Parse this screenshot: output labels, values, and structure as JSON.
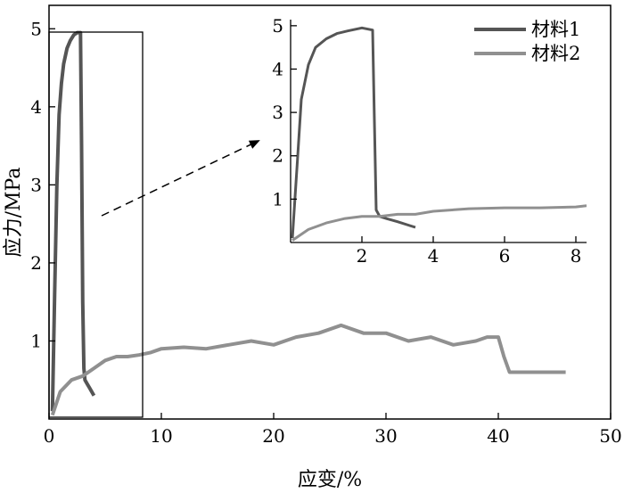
{
  "chart_data": [
    {
      "type": "line",
      "xlabel": "应变/%",
      "ylabel": "应力/MPa",
      "xlim": [
        0,
        50
      ],
      "ylim": [
        0,
        5.3
      ],
      "xticks": [
        "0",
        "10",
        "20",
        "30",
        "40",
        "50"
      ],
      "yticks": [
        "1",
        "2",
        "3",
        "4",
        "5"
      ],
      "legend": {
        "position": "top-right",
        "entries": [
          "材料1",
          "材料2"
        ]
      },
      "series": [
        {
          "name": "材料1",
          "color": "#555555",
          "x": [
            0.3,
            0.5,
            0.7,
            0.9,
            1.1,
            1.3,
            1.6,
            1.9,
            2.2,
            2.5,
            2.8,
            2.9,
            3.0,
            3.1,
            3.2,
            3.4,
            3.6,
            3.8,
            4.0
          ],
          "y": [
            0.1,
            1.6,
            3.0,
            3.9,
            4.3,
            4.55,
            4.75,
            4.85,
            4.92,
            4.95,
            4.95,
            3.5,
            1.5,
            0.65,
            0.5,
            0.45,
            0.4,
            0.35,
            0.3
          ]
        },
        {
          "name": "材料2",
          "color": "#909090",
          "x": [
            0.3,
            1.0,
            2.0,
            3.0,
            4.0,
            5.0,
            6.0,
            7.0,
            8.0,
            9.0,
            10.0,
            12.0,
            14.0,
            16.0,
            18.0,
            20.0,
            22.0,
            24.0,
            26.0,
            28.0,
            30.0,
            32.0,
            34.0,
            36.0,
            38.0,
            39.0,
            40.0,
            40.5,
            41.0,
            42.0,
            46.0
          ],
          "y": [
            0.05,
            0.35,
            0.5,
            0.55,
            0.65,
            0.75,
            0.8,
            0.8,
            0.82,
            0.85,
            0.9,
            0.92,
            0.9,
            0.95,
            1.0,
            0.95,
            1.05,
            1.1,
            1.2,
            1.1,
            1.1,
            1.0,
            1.05,
            0.95,
            1.0,
            1.05,
            1.05,
            0.8,
            0.6,
            0.6,
            0.6
          ]
        }
      ]
    },
    {
      "type": "line",
      "xlim": [
        0,
        8.3
      ],
      "ylim": [
        0,
        5.1
      ],
      "xticks": [
        "2",
        "4",
        "6",
        "8"
      ],
      "yticks": [
        "1",
        "2",
        "3",
        "4",
        "5"
      ],
      "series": [
        {
          "name": "材料1",
          "color": "#555555",
          "x": [
            0.05,
            0.2,
            0.3,
            0.5,
            0.7,
            1.0,
            1.3,
            1.6,
            2.0,
            2.3,
            2.35,
            2.4,
            2.5,
            2.7,
            3.0,
            3.3,
            3.5
          ],
          "y": [
            0.1,
            2.0,
            3.3,
            4.1,
            4.5,
            4.7,
            4.82,
            4.88,
            4.95,
            4.9,
            2.8,
            0.75,
            0.6,
            0.55,
            0.48,
            0.4,
            0.35
          ]
        },
        {
          "name": "材料2",
          "color": "#909090",
          "x": [
            0.05,
            0.5,
            1.0,
            1.5,
            2.0,
            2.5,
            3.0,
            3.5,
            4.0,
            5.0,
            6.0,
            7.0,
            8.0,
            8.3
          ],
          "y": [
            0.05,
            0.3,
            0.45,
            0.55,
            0.6,
            0.6,
            0.65,
            0.65,
            0.72,
            0.78,
            0.8,
            0.8,
            0.82,
            0.85
          ]
        }
      ]
    }
  ]
}
